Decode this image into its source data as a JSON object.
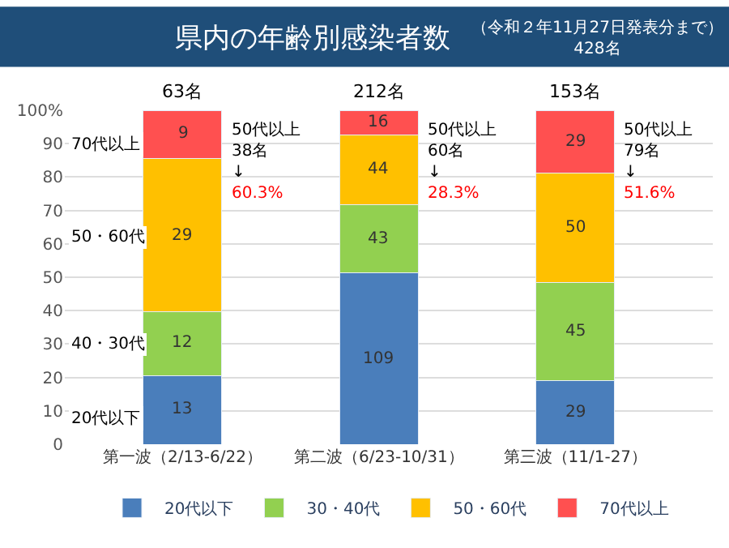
{
  "chart_data": {
    "type": "bar",
    "stacked": true,
    "title": "県内の年齢別感染者数",
    "subtitle": "（令和２年11月27日発表分まで）\n428名",
    "categories": [
      "第一波（2/13-6/22）",
      "第二波（6/23-10/31）",
      "第三波（11/1-27）"
    ],
    "series": [
      {
        "name": "20代以下",
        "color": "#4a7ebb",
        "values": [
          20.6,
          51.4,
          19.0
        ]
      },
      {
        "name": "30・40代",
        "color": "#92d050",
        "values": [
          19.0,
          20.3,
          29.4
        ]
      },
      {
        "name": "50・60代",
        "color": "#ffc000",
        "values": [
          46.0,
          20.8,
          32.7
        ]
      },
      {
        "name": "70代以上",
        "color": "#ff5050",
        "values": [
          14.3,
          7.5,
          18.9
        ]
      }
    ],
    "annotations": [
      "50代以上\n38名\n↓\n60.3%",
      "50代以上\n60名\n↓\n28.3%",
      "50代以上\n79名\n↓\n51.6%",
      "70代以上",
      "50・60代",
      "40・30代",
      "20代以下",
      "13",
      "109",
      "29",
      "12",
      "43",
      "45",
      "29",
      "44",
      "50",
      "9",
      "16",
      "29",
      "63名",
      "212名",
      "153名"
    ],
    "ylim": [
      0,
      100
    ],
    "yticks": [
      0,
      10,
      20,
      30,
      40,
      50,
      60,
      70,
      80,
      90,
      {
        "value": 100,
        "label": "100%"
      }
    ],
    "grid": "y",
    "legend": "bottom"
  }
}
